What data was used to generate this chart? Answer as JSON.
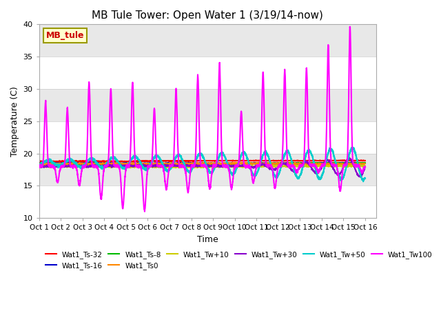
{
  "title": "MB Tule Tower: Open Water 1 (3/19/14-now)",
  "xlabel": "Time",
  "ylabel": "Temperature (C)",
  "ylim": [
    10,
    40
  ],
  "yticks": [
    10,
    15,
    20,
    25,
    30,
    35,
    40
  ],
  "xtick_labels": [
    "Oct 1",
    "Oct 2",
    "Oct 3",
    "Oct 4",
    "Oct 5",
    "Oct 6",
    "Oct 7",
    "Oct 8",
    "Oct 9",
    "Oct 10",
    "Oct 11",
    "Oct 12",
    "Oct 13",
    "Oct 14",
    "Oct 15",
    "Oct 16"
  ],
  "series": [
    {
      "label": "Wat1_Ts-32",
      "color": "#ff0000"
    },
    {
      "label": "Wat1_Ts-16",
      "color": "#0000cc"
    },
    {
      "label": "Wat1_Ts-8",
      "color": "#00bb00"
    },
    {
      "label": "Wat1_Ts0",
      "color": "#ff8800"
    },
    {
      "label": "Wat1_Tw+10",
      "color": "#cccc00"
    },
    {
      "label": "Wat1_Tw+30",
      "color": "#8800cc"
    },
    {
      "label": "Wat1_Tw+50",
      "color": "#00cccc"
    },
    {
      "label": "Wat1_Tw100",
      "color": "#ff00ff"
    }
  ],
  "annotation_label": "MB_tule",
  "annotation_color": "#cc0000",
  "annotation_bg": "#ffffcc",
  "annotation_border": "#999900",
  "bg_color": "#ffffff",
  "band_colors": [
    "#ffffff",
    "#e8e8e8"
  ],
  "band_edges": [
    10,
    15,
    20,
    25,
    30,
    35,
    40
  ]
}
